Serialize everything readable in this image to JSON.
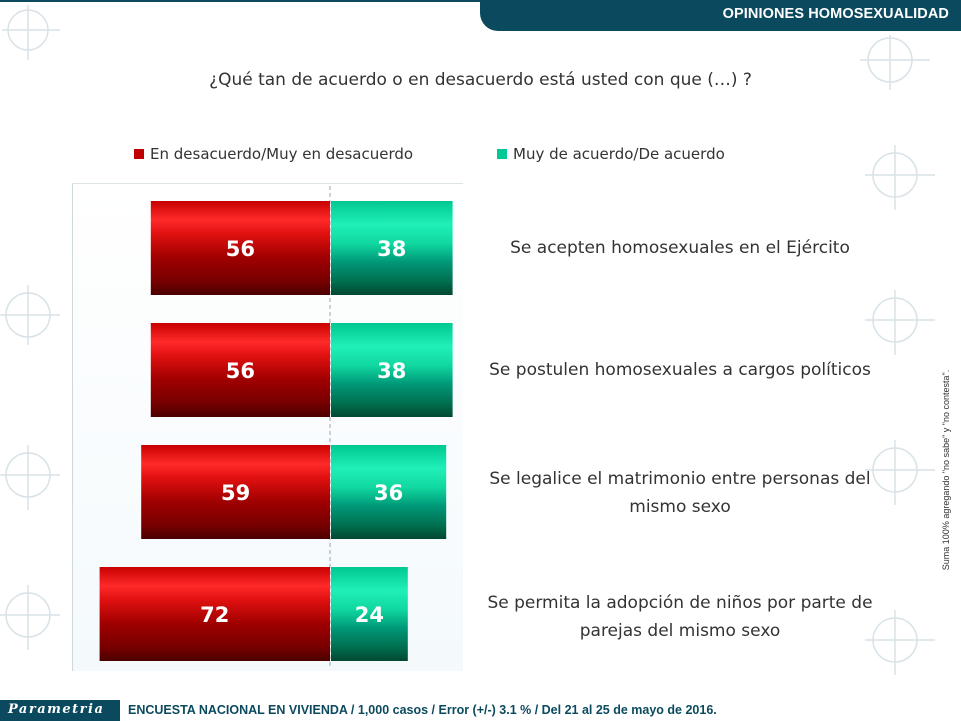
{
  "header": {
    "title": "OPINIONES HOMOSEXUALIDAD"
  },
  "question": "¿Qué tan de acuerdo o en desacuerdo está usted con que (…) ?",
  "legend": [
    {
      "label": "En desacuerdo/Muy en desacuerdo",
      "color": "#c00000"
    },
    {
      "label": "Muy de acuerdo/De acuerdo",
      "color": "#00c896"
    }
  ],
  "chart_data": {
    "type": "bar",
    "orientation": "horizontal-diverging",
    "categories": [
      "Se acepten homosexuales en el Ejército",
      "Se postulen homosexuales a cargos políticos",
      "Se legalice el matrimonio entre personas del mismo sexo",
      "Se permita la adopción de niños por parte de parejas del mismo sexo"
    ],
    "series": [
      {
        "name": "En desacuerdo/Muy en desacuerdo",
        "values": [
          56,
          56,
          59,
          72
        ],
        "color": "#c00000"
      },
      {
        "name": "Muy de acuerdo/De acuerdo",
        "values": [
          38,
          38,
          36,
          24
        ],
        "color": "#00c896"
      }
    ],
    "title": "¿Qué tan de acuerdo o en desacuerdo está usted con que (…) ?",
    "xlabel": "",
    "ylabel": "",
    "legend_position": "top"
  },
  "rows": [
    {
      "line1": "Se acepten homosexuales en el Ejército",
      "line2": ""
    },
    {
      "line1": "Se postulen homosexuales a cargos políticos",
      "line2": ""
    },
    {
      "line1": "Se legalice el matrimonio entre personas del",
      "line2": "mismo sexo"
    },
    {
      "line1": "Se permita la adopción de niños por parte de",
      "line2": "parejas del mismo sexo"
    }
  ],
  "side_note": "Suma 100% agregando \"no sabe\" y \"no contesta\".",
  "footer": {
    "logo": "Parametria",
    "text": "ENCUESTA NACIONAL EN VIVIENDA / 1,000 casos / Error (+/-) 3.1 % / Del 21 al 25 de mayo de 2016."
  }
}
